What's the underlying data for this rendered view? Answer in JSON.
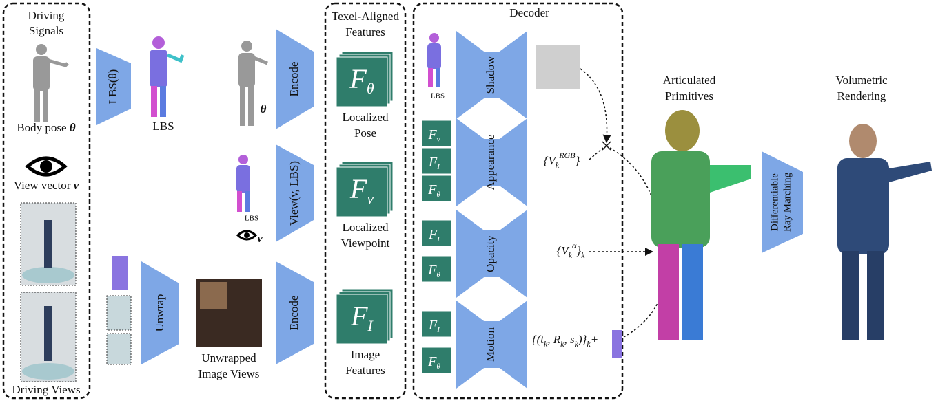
{
  "driving": {
    "title_1": "Driving",
    "title_2": "Signals",
    "pose_label": "Body pose",
    "pose_symbol": "θ",
    "view_label": "View vector",
    "view_symbol": "v",
    "views_label": "Driving Views"
  },
  "lbs_stage": {
    "encoder": "LBS(θ)",
    "output": "LBS"
  },
  "pose_stage": {
    "symbol": "θ",
    "encoder": "Encode"
  },
  "view_stage": {
    "lbs": "LBS",
    "symbol": "v",
    "encoder": "View(v, LBS)"
  },
  "image_stage": {
    "unwrap": "Unwrap",
    "unwrapped_1": "Unwrapped",
    "unwrapped_2": "Image Views",
    "encoder": "Encode"
  },
  "features": {
    "title_1": "Texel-Aligned",
    "title_2": "Features",
    "items": [
      {
        "symbol": "F",
        "sub": "θ",
        "label_1": "Localized",
        "label_2": "Pose"
      },
      {
        "symbol": "F",
        "sub": "v",
        "label_1": "Localized",
        "label_2": "Viewpoint"
      },
      {
        "symbol": "F",
        "sub": "I",
        "label_1": "Image",
        "label_2": "Features"
      }
    ]
  },
  "decoder": {
    "title": "Decoder",
    "lbs": "LBS",
    "branches": [
      {
        "name": "Shadow"
      },
      {
        "name": "Appearance",
        "output": [
          {
            "text": "{V"
          },
          {
            "text": "k",
            "pos": "sub"
          },
          {
            "text": "RGB",
            "pos": "sup"
          },
          {
            "text": "}"
          }
        ]
      },
      {
        "name": "Opacity",
        "output": [
          {
            "text": "{V"
          },
          {
            "text": "k",
            "pos": "sub"
          },
          {
            "text": "α",
            "pos": "sup"
          },
          {
            "text": "}"
          },
          {
            "text": "k",
            "pos": "sub"
          }
        ]
      },
      {
        "name": "Motion",
        "output": [
          {
            "text": "{(t"
          },
          {
            "text": "k",
            "pos": "sub"
          },
          {
            "text": ", R"
          },
          {
            "text": "k",
            "pos": "sub"
          },
          {
            "text": ", s"
          },
          {
            "text": "k",
            "pos": "sub"
          },
          {
            "text": ")}"
          },
          {
            "text": "k",
            "pos": "sub"
          },
          {
            "text": "+"
          }
        ]
      }
    ]
  },
  "primitives": {
    "title_1": "Articulated",
    "title_2": "Primitives"
  },
  "rendering": {
    "title_1": "Volumetric",
    "title_2": "Rendering",
    "marcher_1": "Differentiable",
    "marcher_2": "Ray Marching"
  }
}
